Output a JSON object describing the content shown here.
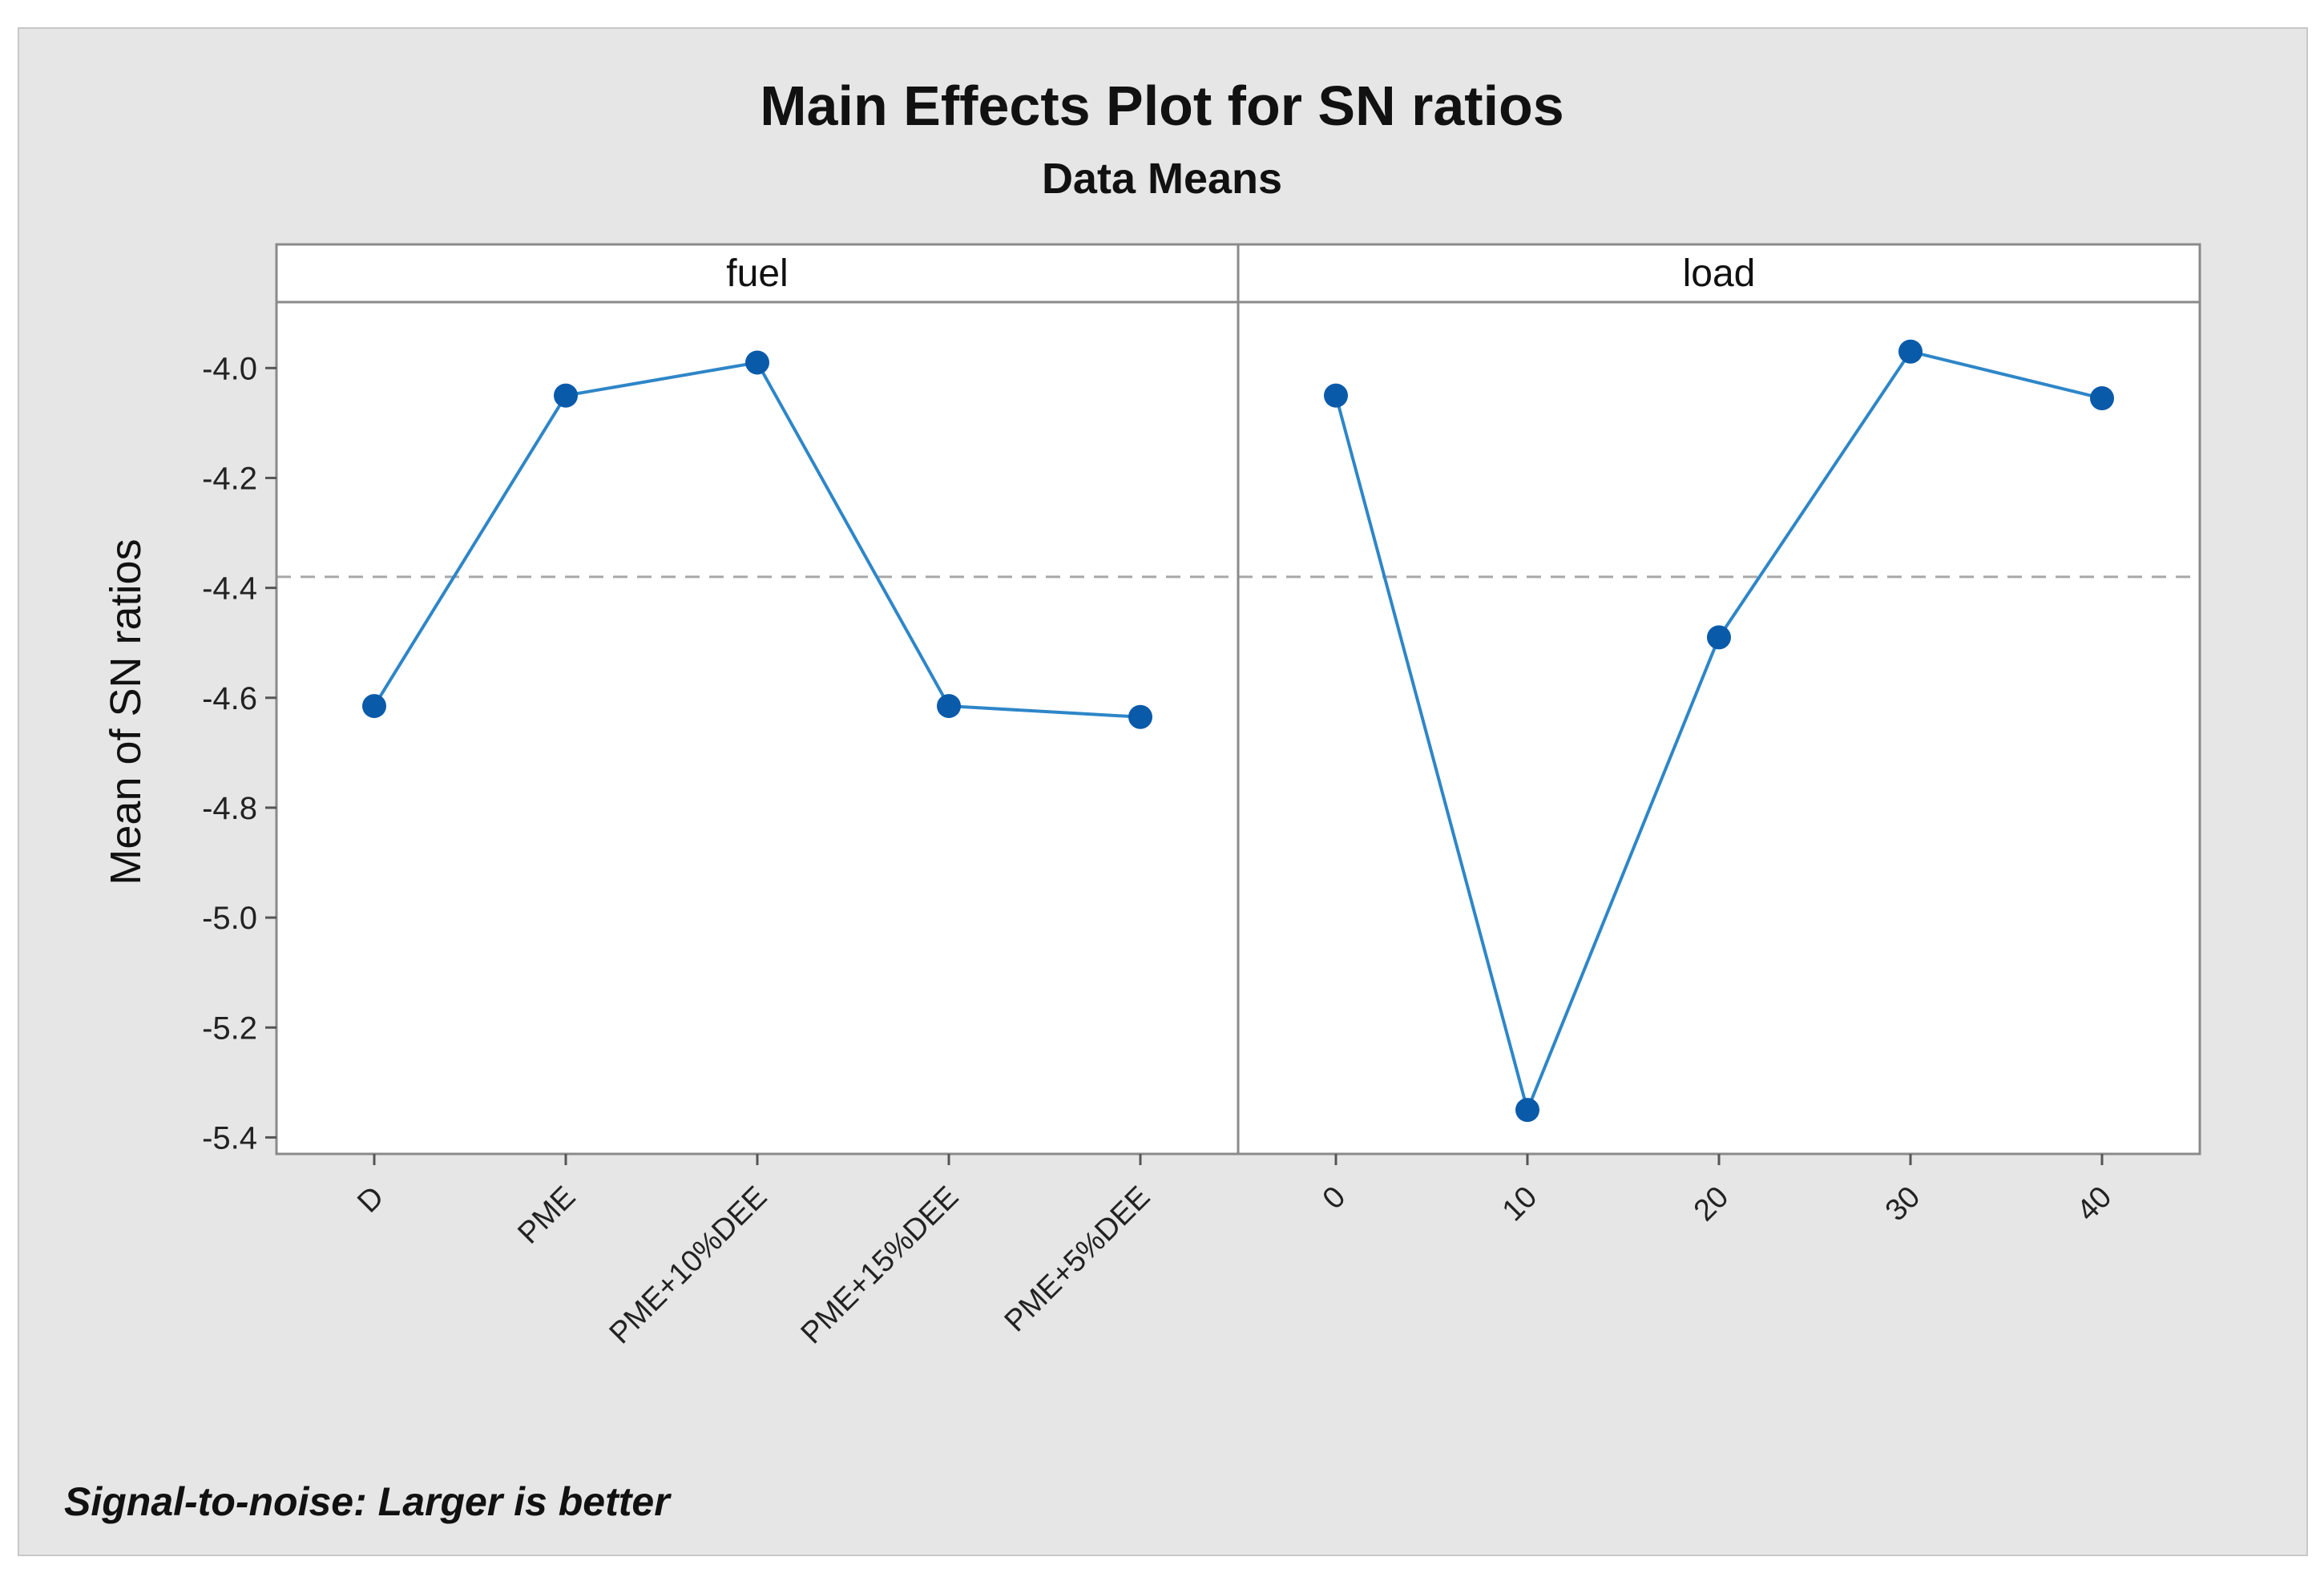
{
  "chart_data": {
    "type": "line",
    "title": "Main Effects Plot for SN ratios",
    "subtitle": "Data Means",
    "ylabel": "Mean of SN ratios",
    "ylim": [
      -5.43,
      -3.88
    ],
    "yticks": [
      -4.0,
      -4.2,
      -4.4,
      -4.6,
      -4.8,
      -5.0,
      -5.2,
      -5.4
    ],
    "ytick_labels": [
      "-4.0",
      "-4.2",
      "-4.4",
      "-4.6",
      "-4.8",
      "-5.0",
      "-5.2",
      "-5.4"
    ],
    "reference_line": -4.38,
    "footnote": "Signal-to-noise: Larger is better",
    "panels": [
      {
        "name": "fuel",
        "categories": [
          "D",
          "PME",
          "PME+10%DEE",
          "PME+15%DEE",
          "PME+5%DEE"
        ],
        "values": [
          -4.615,
          -4.05,
          -3.99,
          -4.615,
          -4.635
        ]
      },
      {
        "name": "load",
        "categories": [
          "0",
          "10",
          "20",
          "30",
          "40"
        ],
        "values": [
          -4.05,
          -5.35,
          -4.49,
          -3.97,
          -4.055
        ]
      }
    ],
    "colors": {
      "series": "#2e86c8",
      "marker": "#0a5aaa",
      "reference": "#a8a8a8"
    }
  }
}
